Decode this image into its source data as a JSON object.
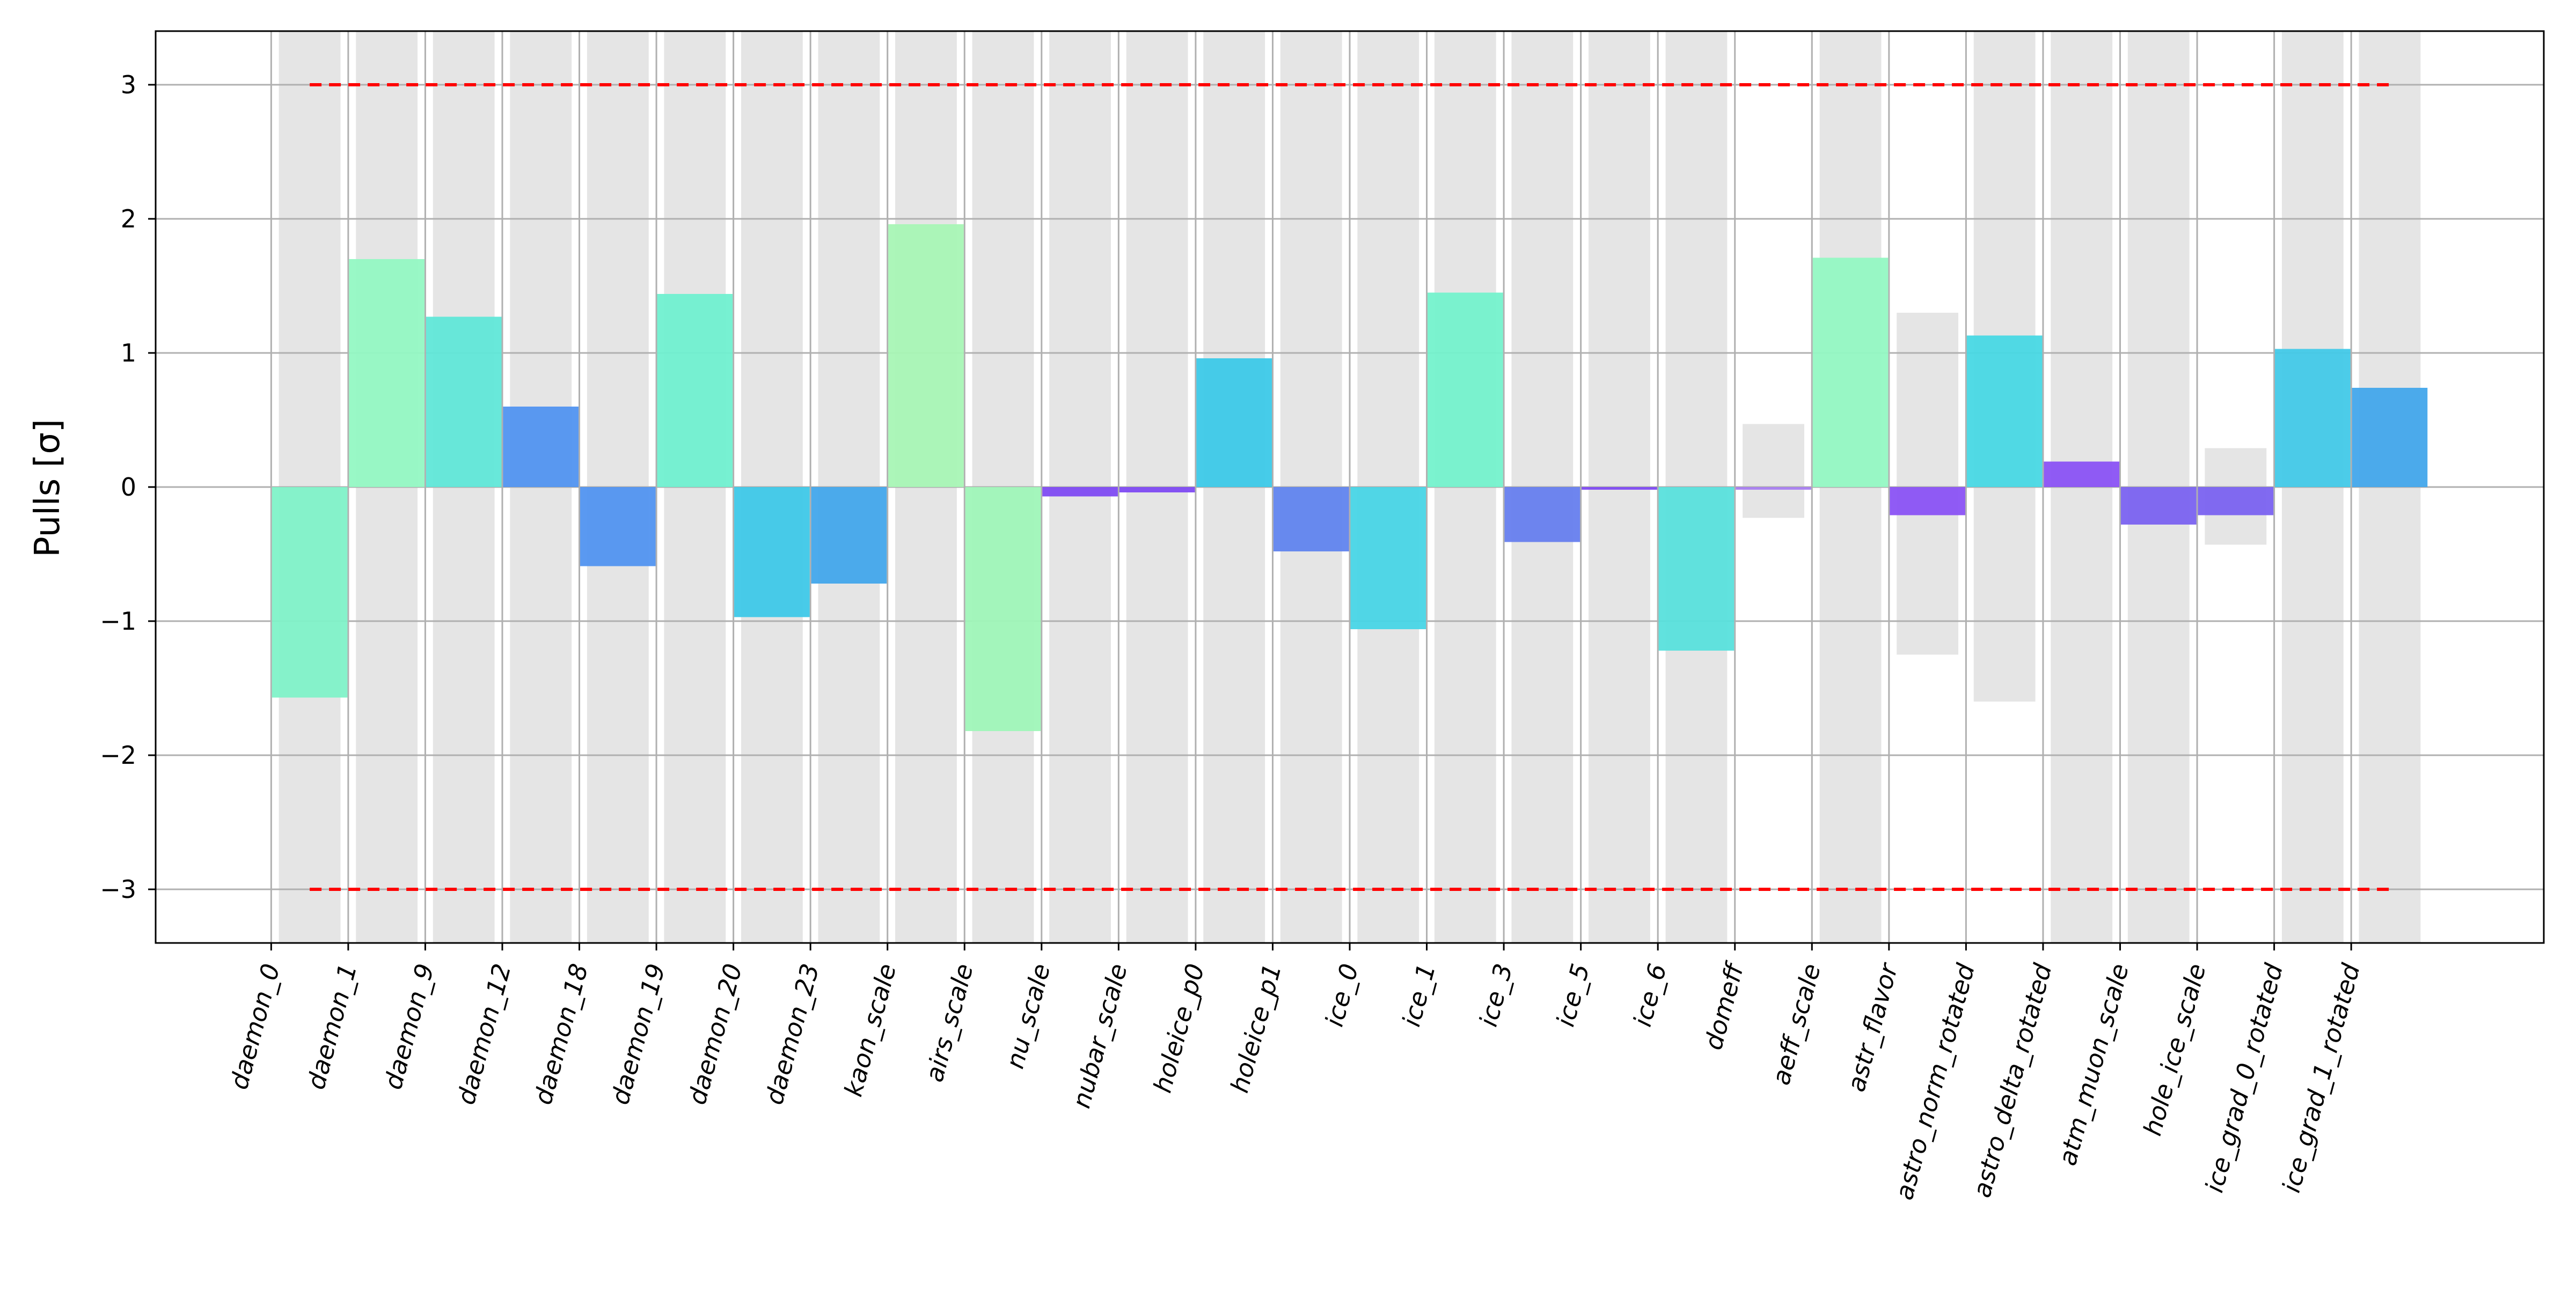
{
  "chart_data": {
    "type": "bar",
    "title": "",
    "xlabel": "",
    "ylabel": "Pulls [σ]",
    "ylim": [
      -3.4,
      3.4
    ],
    "xlim": [
      -1.5,
      29.5
    ],
    "yticks": [
      -3,
      -2,
      -1,
      0,
      1,
      2,
      3
    ],
    "grid": true,
    "bar_offset": 0.5,
    "categories": [
      "daemon_0",
      "daemon_1",
      "daemon_9",
      "daemon_12",
      "daemon_18",
      "daemon_19",
      "daemon_20",
      "daemon_23",
      "kaon_scale",
      "airs_scale",
      "nu_scale",
      "nubar_scale",
      "holeice_p0",
      "holeice_p1",
      "ice_0",
      "ice_1",
      "ice_3",
      "ice_5",
      "ice_6",
      "domeff",
      "aeff_scale",
      "astr_flavor",
      "astro_norm_rotated",
      "astro_delta_rotated",
      "atm_muon_scale",
      "hole_ice_scale",
      "ice_grad_0_rotated",
      "ice_grad_1_rotated"
    ],
    "series": [
      {
        "values": [
          -1.57,
          1.7,
          1.27,
          0.6,
          -0.59,
          1.44,
          -0.97,
          -0.72,
          1.96,
          -1.82,
          -0.07,
          -0.04,
          0.96,
          -0.48,
          -1.06,
          1.45,
          -0.41,
          -0.02,
          -1.22,
          -0.02,
          1.71,
          -0.21,
          1.13,
          0.19,
          -0.28,
          -0.21,
          1.03,
          0.74
        ],
        "colors": [
          "#7ff2c8",
          "#93f8c3",
          "#60e7d8",
          "#5193f0",
          "#5193f0",
          "#70f0d0",
          "#3ec8e8",
          "#42a6eb",
          "#a8f5b5",
          "#9ff5b8",
          "#7e4af2",
          "#7e4af2",
          "#3cc9e8",
          "#6084ee",
          "#48d5e6",
          "#74f2cc",
          "#667eee",
          "#7e4af2",
          "#58e0dc",
          "#a87ef0",
          "#93f8c3",
          "#8a52f4",
          "#48d8e4",
          "#8a52f4",
          "#7a62f0",
          "#7a62f0",
          "#42c9e8",
          "#42a6eb"
        ]
      }
    ],
    "prior_bands": [
      {
        "category": "domeff",
        "lower": -0.23,
        "upper": 0.47
      },
      {
        "category": "astr_flavor",
        "lower": -1.25,
        "upper": 1.3
      },
      {
        "category": "astro_norm_rotated",
        "lower": -1.6,
        "upper": 3.4
      },
      {
        "category": "hole_ice_scale",
        "lower": -0.43,
        "upper": 0.29
      }
    ],
    "reference_lines": [
      {
        "y": 3,
        "color": "#ff0000",
        "style": "dashed"
      },
      {
        "y": -3,
        "color": "#ff0000",
        "style": "dashed"
      }
    ],
    "band_color": "#e5e5e5",
    "grid_color": "#b0b0b0"
  }
}
